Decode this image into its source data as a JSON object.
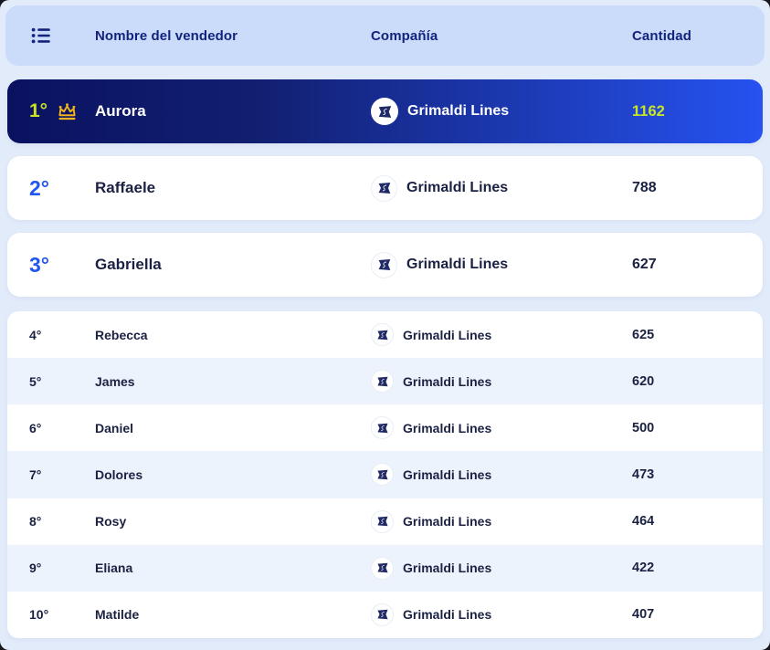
{
  "header": {
    "menu_icon": "list-icon",
    "columns": {
      "seller": "Nombre del vendedor",
      "company": "Compañía",
      "quantity": "Cantidad"
    }
  },
  "leaderboard": {
    "rows": [
      {
        "rank": "1°",
        "name": "Aurora",
        "company": "Grimaldi Lines",
        "quantity": "1162",
        "crown": true
      },
      {
        "rank": "2°",
        "name": "Raffaele",
        "company": "Grimaldi Lines",
        "quantity": "788"
      },
      {
        "rank": "3°",
        "name": "Gabriella",
        "company": "Grimaldi Lines",
        "quantity": "627"
      },
      {
        "rank": "4°",
        "name": "Rebecca",
        "company": "Grimaldi Lines",
        "quantity": "625"
      },
      {
        "rank": "5°",
        "name": "James",
        "company": "Grimaldi Lines",
        "quantity": "620"
      },
      {
        "rank": "6°",
        "name": "Daniel",
        "company": "Grimaldi Lines",
        "quantity": "500"
      },
      {
        "rank": "7°",
        "name": "Dolores",
        "company": "Grimaldi Lines",
        "quantity": "473"
      },
      {
        "rank": "8°",
        "name": "Rosy",
        "company": "Grimaldi Lines",
        "quantity": "464"
      },
      {
        "rank": "9°",
        "name": "Eliana",
        "company": "Grimaldi Lines",
        "quantity": "422"
      },
      {
        "rank": "10°",
        "name": "Matilde",
        "company": "Grimaldi Lines",
        "quantity": "407"
      }
    ]
  },
  "colors": {
    "page_background": "#e2ebfa",
    "header_background": "#cbdcfb",
    "header_text": "#14237d",
    "first_row_gradient_start": "#0a1260",
    "first_row_gradient_end": "#2652f1",
    "highlight_lime": "#c8e525",
    "crown_gold": "#f0b41e",
    "rank_blue": "#2256f0",
    "dark_text": "#1b2142",
    "alt_row_background": "#edf3fc",
    "logo_navy": "#202a66"
  }
}
